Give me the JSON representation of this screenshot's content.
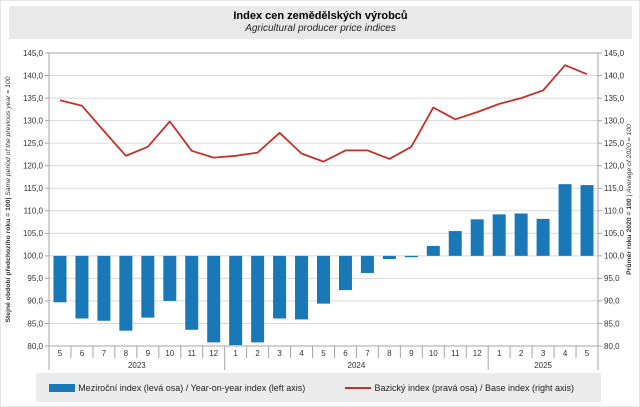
{
  "header": {
    "title": "Index cen zemědělských výrobců",
    "subtitle": "Agricultural producer price indices"
  },
  "axes": {
    "left_title_cs": "Stejné období předchozího roku = 100|",
    "left_title_en": " Same period of the previous year = 100",
    "right_title_cs": "Průměr roku 2020 = 100",
    "right_title_en": " | Average of 2020 = 100",
    "tick_labels": [
      "145,0",
      "140,0",
      "135,0",
      "130,0",
      "125,0",
      "120,0",
      "115,0",
      "110,0",
      "105,0",
      "100,0",
      "95,0",
      "90,0",
      "85,0",
      "80,0"
    ]
  },
  "legend": {
    "bar_label": "Meziroční index (levá osa) / Year-on-year index (left axis)",
    "line_label": "Bazický index (pravá osa) / Base index (right axis)"
  },
  "colors": {
    "bar": "#1878b8",
    "line": "#c3322c",
    "grid": "#d9d9d9",
    "axis": "#a6a6a6",
    "tick_text": "#333333",
    "header_bg": "#e9e9e9",
    "legend_bg": "#ececec"
  },
  "chart_data": {
    "type": "bar+line combo",
    "title": "Index cen zemědělských výrobců / Agricultural producer price indices",
    "x_months": [
      "5",
      "6",
      "7",
      "8",
      "9",
      "10",
      "11",
      "12",
      "1",
      "2",
      "3",
      "4",
      "5",
      "6",
      "7",
      "8",
      "9",
      "10",
      "11",
      "12",
      "1",
      "2",
      "3",
      "4",
      "5"
    ],
    "year_groups": [
      {
        "label": "2023",
        "count": 8
      },
      {
        "label": "2024",
        "count": 12
      },
      {
        "label": "2025",
        "count": 5
      }
    ],
    "left_axis": {
      "min": 80,
      "max": 145,
      "step": 5,
      "label": "Stejné období předchozího roku = 100 | Same period of the previous year = 100"
    },
    "right_axis": {
      "min": 80,
      "max": 145,
      "step": 5,
      "label": "Průměr roku 2020 = 100 | Average of 2020 = 100"
    },
    "bar_baseline": 100,
    "grid": true,
    "legend_position": "bottom",
    "series": [
      {
        "name": "Meziroční index (levá osa) / Year-on-year index (left axis)",
        "type": "bar",
        "axis": "left",
        "values": [
          89.7,
          86.1,
          85.6,
          83.4,
          86.3,
          90.0,
          83.6,
          80.8,
          80.2,
          80.8,
          86.1,
          85.9,
          89.4,
          92.4,
          96.2,
          99.3,
          99.7,
          102.2,
          105.5,
          108.1,
          109.2,
          109.4,
          108.2,
          115.9,
          115.7
        ]
      },
      {
        "name": "Bazický index (pravá osa) / Base index (right axis)",
        "type": "line",
        "axis": "right",
        "values": [
          134.5,
          133.3,
          127.7,
          122.2,
          124.2,
          129.8,
          123.3,
          121.8,
          122.2,
          122.9,
          127.3,
          122.7,
          120.9,
          123.4,
          123.4,
          121.5,
          124.2,
          132.9,
          130.3,
          131.9,
          133.7,
          135.0,
          136.7,
          142.3,
          140.3
        ]
      }
    ]
  }
}
